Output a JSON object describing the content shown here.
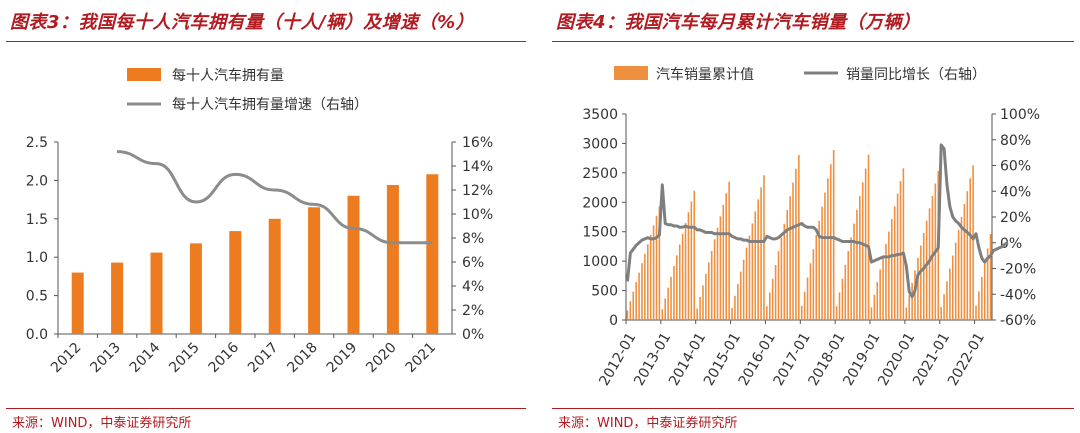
{
  "chart_data": [
    {
      "type": "bar",
      "title": "图表3：我国每十人汽车拥有量（十人/辆）及增速（%）",
      "source": "来源：WIND，中泰证券研究所",
      "categories": [
        "2012",
        "2013",
        "2014",
        "2015",
        "2016",
        "2017",
        "2018",
        "2019",
        "2020",
        "2021"
      ],
      "left_axis": {
        "ylim": [
          0,
          2.5
        ],
        "ticks": [
          "0.0",
          "0.5",
          "1.0",
          "1.5",
          "2.0",
          "2.5"
        ]
      },
      "right_axis": {
        "ylim": [
          0,
          16
        ],
        "ticks": [
          "0%",
          "2%",
          "4%",
          "6%",
          "8%",
          "10%",
          "12%",
          "14%",
          "16%"
        ]
      },
      "legend_position": "top",
      "series": [
        {
          "name": "每十人汽车拥有量",
          "type": "bar",
          "axis": "left",
          "color": "#ec7c1f",
          "values": [
            0.8,
            0.93,
            1.06,
            1.18,
            1.34,
            1.5,
            1.65,
            1.8,
            1.94,
            2.08
          ]
        },
        {
          "name": "每十人汽车拥有量增速（右轴）",
          "type": "line",
          "axis": "right",
          "color": "#8c8c8c",
          "values": [
            null,
            15.2,
            14.2,
            11.0,
            13.3,
            12.0,
            10.8,
            8.8,
            7.6,
            7.6
          ]
        }
      ]
    },
    {
      "type": "bar",
      "title": "图表4：我国汽车每月累计汽车销量（万辆）",
      "source": "来源：WIND，中泰证券研究所",
      "x_ticks": [
        "2012-01",
        "2013-01",
        "2014-01",
        "2015-01",
        "2016-01",
        "2017-01",
        "2018-01",
        "2019-01",
        "2020-01",
        "2021-01",
        "2022-01"
      ],
      "left_axis": {
        "ylim": [
          0,
          3500
        ],
        "ticks": [
          "0",
          "500",
          "1000",
          "1500",
          "2000",
          "2500",
          "3000",
          "3500"
        ]
      },
      "right_axis": {
        "ylim": [
          -60,
          100
        ],
        "ticks": [
          "-60%",
          "-40%",
          "-20%",
          "0%",
          "20%",
          "40%",
          "60%",
          "80%",
          "100%"
        ]
      },
      "legend_position": "top",
      "series": [
        {
          "name": "汽车销量累计值",
          "type": "bar",
          "axis": "left",
          "color": "#ec7c1f",
          "annual_totals": [
            1931,
            2198,
            2349,
            2460,
            2803,
            2888,
            2808,
            2577,
            2531,
            2627,
            1460
          ],
          "note_months": "monthly cumulative values rising from January to December each year"
        },
        {
          "name": "销量同比增长（右轴）",
          "type": "line",
          "axis": "right",
          "color": "#7f7f7f",
          "values": [
            -30,
            -8,
            -5,
            -2,
            0,
            2,
            3,
            4,
            3,
            3,
            4,
            6,
            45,
            15,
            14,
            14,
            13,
            13,
            12,
            12,
            13,
            12,
            12,
            12,
            10,
            10,
            9,
            8,
            8,
            8,
            7,
            7,
            7,
            7,
            7,
            7,
            5,
            4,
            3,
            3,
            2,
            2,
            1,
            1,
            1,
            1,
            1,
            1,
            5,
            4,
            3,
            3,
            4,
            6,
            8,
            10,
            11,
            12,
            13,
            14,
            15,
            13,
            12,
            12,
            12,
            10,
            5,
            4,
            4,
            4,
            4,
            4,
            3,
            2,
            1,
            1,
            1,
            1,
            1,
            0,
            0,
            -1,
            -2,
            -3,
            -15,
            -14,
            -13,
            -12,
            -11,
            -11,
            -11,
            -10,
            -10,
            -9,
            -9,
            -8,
            -18,
            -38,
            -42,
            -37,
            -25,
            -22,
            -20,
            -17,
            -14,
            -10,
            -7,
            -4,
            76,
            73,
            45,
            28,
            20,
            17,
            15,
            12,
            10,
            8,
            6,
            3,
            7,
            -4,
            -12,
            -15,
            -12,
            -10,
            -6,
            -5,
            -4,
            -3,
            -1,
            0
          ]
        }
      ]
    }
  ],
  "footer": {
    "left": "来源：WIND，中泰证券研究所",
    "right": "来源：WIND，中泰证券研究所"
  }
}
